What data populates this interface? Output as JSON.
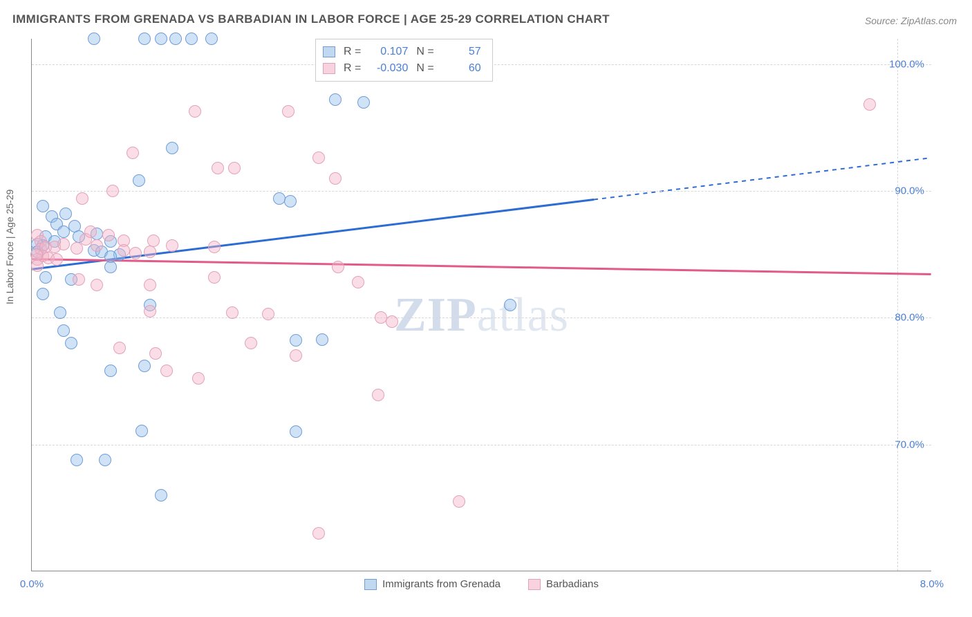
{
  "title": "IMMIGRANTS FROM GRENADA VS BARBADIAN IN LABOR FORCE | AGE 25-29 CORRELATION CHART",
  "source": "Source: ZipAtlas.com",
  "y_axis_label": "In Labor Force | Age 25-29",
  "watermark_prefix": "ZIP",
  "watermark_suffix": "atlas",
  "chart": {
    "type": "scatter",
    "xlim": [
      0.0,
      8.0
    ],
    "ylim": [
      60.0,
      102.0
    ],
    "x_ticks": [
      {
        "value": 0.0,
        "label": "0.0%"
      },
      {
        "value": 8.0,
        "label": "8.0%"
      }
    ],
    "y_ticks": [
      {
        "value": 70.0,
        "label": "70.0%"
      },
      {
        "value": 80.0,
        "label": "80.0%"
      },
      {
        "value": 90.0,
        "label": "90.0%"
      },
      {
        "value": 100.0,
        "label": "100.0%"
      }
    ],
    "background_color": "#ffffff",
    "grid_color": "#d7d7d7",
    "axis_color": "#888888",
    "tick_label_color": "#4a7fd6",
    "title_color": "#555555",
    "title_fontsize": 17,
    "label_fontsize": 14,
    "tick_fontsize": 15,
    "point_radius": 9,
    "series": [
      {
        "name": "Immigrants from Grenada",
        "key": "blue",
        "fill_color": "rgba(151,190,232,0.45)",
        "stroke_color": "#6e9dd9",
        "trend_color": "#2d6cd2",
        "trend_width": 3,
        "r_value": "0.107",
        "n_value": "57",
        "trend": {
          "x1": 0.0,
          "y1": 83.8,
          "x2": 5.0,
          "y2": 89.3,
          "x_dash_to": 8.0,
          "y_dash_to": 92.6
        },
        "points": [
          [
            0.55,
            102.0
          ],
          [
            1.0,
            102.0
          ],
          [
            1.15,
            102.0
          ],
          [
            1.28,
            102.0
          ],
          [
            1.42,
            102.0
          ],
          [
            1.6,
            102.0
          ],
          [
            2.7,
            97.2
          ],
          [
            2.95,
            97.0
          ],
          [
            1.25,
            93.4
          ],
          [
            0.95,
            90.8
          ],
          [
            0.1,
            88.8
          ],
          [
            0.18,
            88.0
          ],
          [
            0.22,
            87.4
          ],
          [
            0.3,
            88.2
          ],
          [
            0.38,
            87.2
          ],
          [
            0.12,
            86.4
          ],
          [
            0.1,
            85.7
          ],
          [
            0.05,
            85.8
          ],
          [
            0.05,
            85.2
          ],
          [
            0.2,
            86.0
          ],
          [
            0.28,
            86.8
          ],
          [
            0.42,
            86.4
          ],
          [
            0.55,
            85.3
          ],
          [
            0.58,
            86.6
          ],
          [
            0.62,
            85.2
          ],
          [
            0.7,
            86.0
          ],
          [
            0.78,
            85.0
          ],
          [
            0.7,
            84.0
          ],
          [
            2.2,
            89.4
          ],
          [
            2.3,
            89.2
          ],
          [
            0.12,
            83.2
          ],
          [
            0.35,
            83.0
          ],
          [
            0.1,
            81.9
          ],
          [
            0.25,
            80.4
          ],
          [
            0.28,
            79.0
          ],
          [
            0.35,
            78.0
          ],
          [
            1.05,
            81.0
          ],
          [
            4.25,
            81.0
          ],
          [
            0.7,
            75.8
          ],
          [
            1.0,
            76.2
          ],
          [
            2.35,
            78.2
          ],
          [
            2.58,
            78.3
          ],
          [
            0.98,
            71.1
          ],
          [
            2.35,
            71.0
          ],
          [
            0.4,
            68.8
          ],
          [
            0.65,
            68.8
          ],
          [
            1.15,
            66.0
          ],
          [
            0.7,
            84.8
          ]
        ]
      },
      {
        "name": "Barbadians",
        "key": "pink",
        "fill_color": "rgba(244,180,200,0.45)",
        "stroke_color": "#e3a2b8",
        "trend_color": "#e25a8a",
        "trend_width": 3,
        "r_value": "-0.030",
        "n_value": "60",
        "trend": {
          "x1": 0.0,
          "y1": 84.6,
          "x2": 8.0,
          "y2": 83.4,
          "x_dash_to": 8.0,
          "y_dash_to": 83.4
        },
        "points": [
          [
            7.45,
            96.8
          ],
          [
            1.45,
            96.3
          ],
          [
            2.28,
            96.3
          ],
          [
            0.9,
            93.0
          ],
          [
            1.65,
            91.8
          ],
          [
            1.8,
            91.8
          ],
          [
            2.55,
            92.6
          ],
          [
            2.7,
            91.0
          ],
          [
            0.45,
            89.4
          ],
          [
            0.72,
            90.0
          ],
          [
            0.05,
            86.5
          ],
          [
            0.08,
            86.0
          ],
          [
            0.08,
            85.4
          ],
          [
            0.12,
            85.6
          ],
          [
            0.1,
            84.9
          ],
          [
            0.05,
            84.6
          ],
          [
            0.05,
            84.1
          ],
          [
            0.04,
            85.0
          ],
          [
            0.15,
            84.7
          ],
          [
            0.2,
            85.6
          ],
          [
            0.22,
            84.6
          ],
          [
            0.28,
            85.8
          ],
          [
            0.4,
            85.5
          ],
          [
            0.48,
            86.2
          ],
          [
            0.52,
            86.8
          ],
          [
            0.58,
            85.7
          ],
          [
            0.68,
            86.5
          ],
          [
            0.82,
            86.1
          ],
          [
            0.82,
            85.3
          ],
          [
            0.92,
            85.1
          ],
          [
            1.08,
            86.1
          ],
          [
            1.05,
            85.2
          ],
          [
            1.25,
            85.7
          ],
          [
            1.62,
            85.6
          ],
          [
            0.42,
            83.0
          ],
          [
            0.58,
            82.6
          ],
          [
            1.05,
            82.6
          ],
          [
            1.62,
            83.2
          ],
          [
            2.72,
            84.0
          ],
          [
            2.9,
            82.8
          ],
          [
            1.05,
            80.5
          ],
          [
            1.78,
            80.4
          ],
          [
            2.1,
            80.3
          ],
          [
            3.1,
            80.0
          ],
          [
            3.2,
            79.7
          ],
          [
            0.78,
            77.6
          ],
          [
            1.1,
            77.2
          ],
          [
            2.35,
            77.0
          ],
          [
            1.95,
            78.0
          ],
          [
            1.2,
            75.8
          ],
          [
            1.48,
            75.2
          ],
          [
            3.08,
            73.9
          ],
          [
            3.8,
            65.5
          ],
          [
            2.55,
            63.0
          ]
        ]
      }
    ],
    "stats_box": {
      "r_label": "R =",
      "n_label": "N ="
    },
    "legend_bottom": [
      {
        "swatch": "blue",
        "label": "Immigrants from Grenada"
      },
      {
        "swatch": "pink",
        "label": "Barbadians"
      }
    ]
  }
}
